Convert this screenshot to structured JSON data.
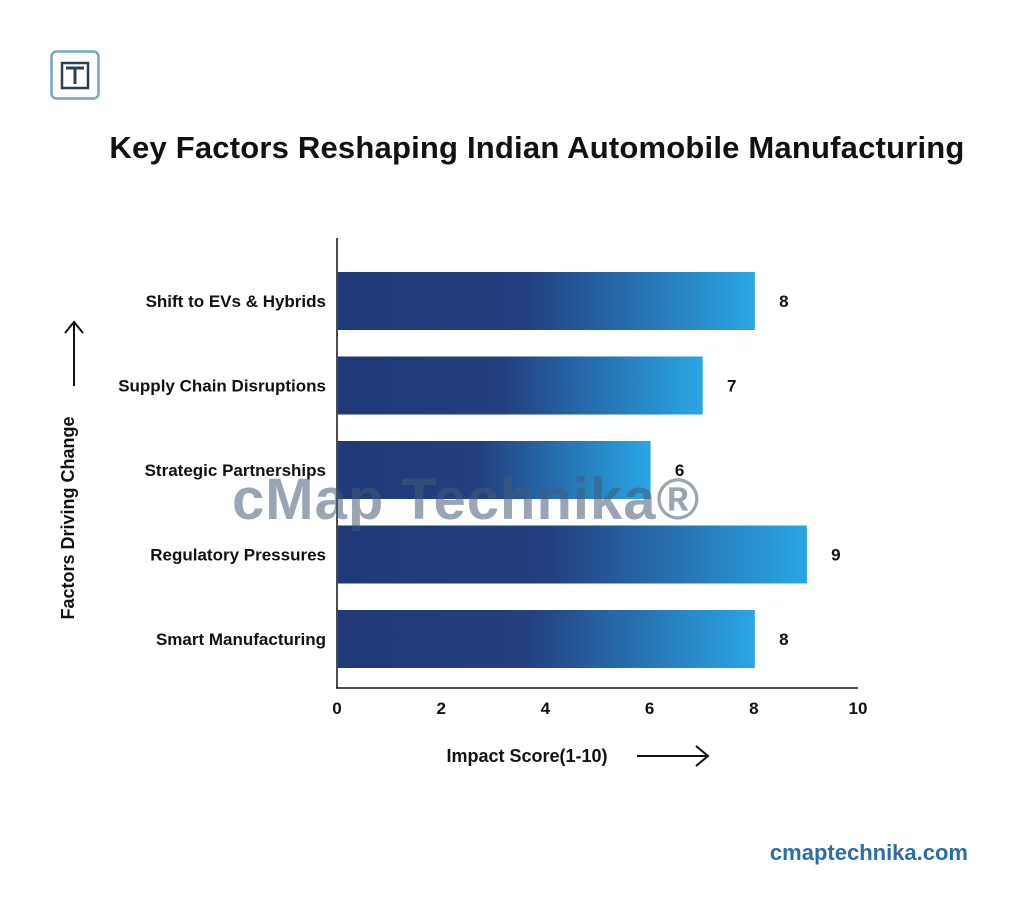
{
  "brand": {
    "logo_letter": "T",
    "watermark": "cMap Technika®",
    "website": "cmaptechnika.com",
    "accent": "#2b6ea6"
  },
  "chart_data": {
    "type": "bar",
    "orientation": "horizontal",
    "title": "Key Factors Reshaping Indian Automobile Manufacturing",
    "xlabel": "Impact Score(1-10)",
    "ylabel": "Factors Driving Change",
    "categories": [
      "Shift to EVs & Hybrids",
      "Supply Chain Disruptions",
      "Strategic Partnerships",
      "Regulatory Pressures",
      "Smart Manufacturing"
    ],
    "values": [
      8,
      7,
      6,
      9,
      8
    ],
    "xlim": [
      0,
      10
    ],
    "xticks": [
      0,
      2,
      4,
      6,
      8,
      10
    ],
    "grid": false,
    "colors": {
      "bar_start": "#1e3a78",
      "bar_mid": "#233f80",
      "bar_end": "#2aa6e4"
    }
  }
}
